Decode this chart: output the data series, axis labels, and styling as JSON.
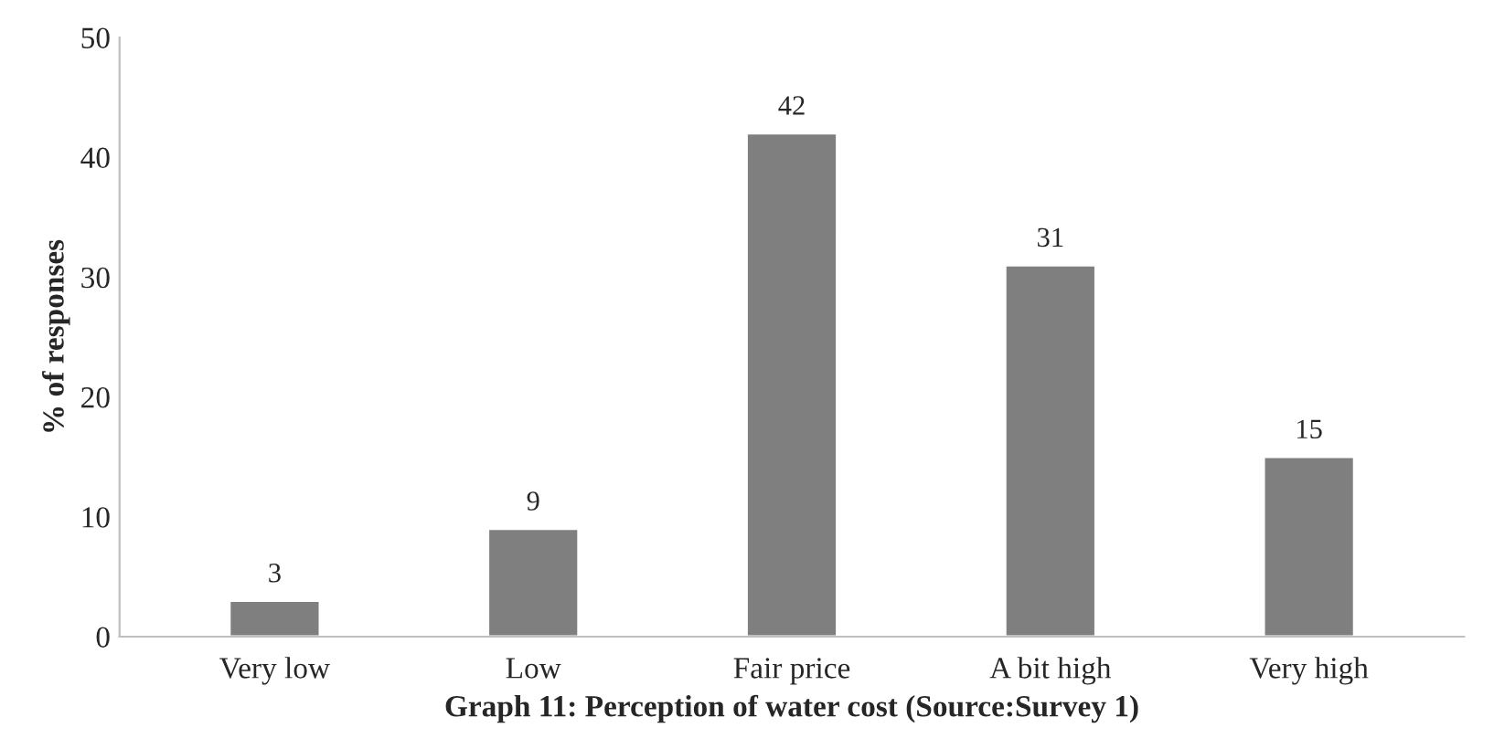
{
  "chart_data": {
    "type": "bar",
    "categories": [
      "Very low",
      "Low",
      "Fair price",
      "A bit high",
      "Very high"
    ],
    "values": [
      3,
      9,
      42,
      31,
      15
    ],
    "color": "#7f7f7f",
    "ylabel": "% of responses",
    "xlabel": "Graph 11: Perception of water cost (Source:Survey 1)",
    "ylim": [
      0,
      50
    ],
    "yticks": [
      0,
      10,
      20,
      30,
      40,
      50
    ],
    "data_labels": true,
    "grid": false,
    "legend": false
  }
}
